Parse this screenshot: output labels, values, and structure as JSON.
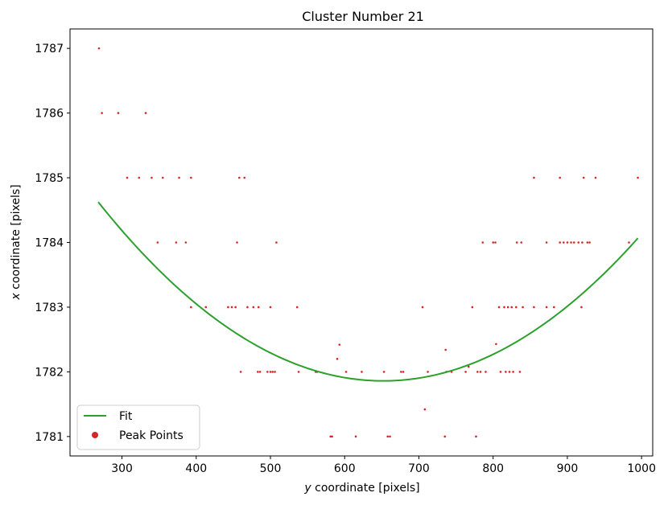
{
  "chart_data": {
    "type": "scatter",
    "title": "Cluster Number 21",
    "xlabel_italic": "y",
    "xlabel_rest": " coordinate [pixels]",
    "ylabel_italic": "x",
    "ylabel_rest": " coordinate [pixels]",
    "xlim": [
      230,
      1015
    ],
    "ylim": [
      1780.7,
      1787.3
    ],
    "xticks": [
      300,
      400,
      500,
      600,
      700,
      800,
      900,
      1000
    ],
    "yticks": [
      1781,
      1782,
      1783,
      1784,
      1785,
      1786,
      1787
    ],
    "grid": false,
    "legend_position": "lower-left",
    "series": [
      {
        "name": "Fit",
        "kind": "line",
        "color": "#2ca02c",
        "x_range": [
          268,
          995
        ],
        "quadratic": {
          "vertex_x": 652,
          "vertex_y": 1781.86,
          "a": 1.875e-05
        }
      },
      {
        "name": "Peak Points",
        "kind": "scatter",
        "color": "#d62728",
        "points": [
          [
            269,
            1787
          ],
          [
            273,
            1786
          ],
          [
            295,
            1786
          ],
          [
            332,
            1786
          ],
          [
            307,
            1785
          ],
          [
            323,
            1785
          ],
          [
            340,
            1785
          ],
          [
            355,
            1785
          ],
          [
            377,
            1785
          ],
          [
            393,
            1785
          ],
          [
            458,
            1785
          ],
          [
            465,
            1785
          ],
          [
            348,
            1784
          ],
          [
            373,
            1784
          ],
          [
            386,
            1784
          ],
          [
            455,
            1784
          ],
          [
            508,
            1784
          ],
          [
            393,
            1783
          ],
          [
            413,
            1783
          ],
          [
            443,
            1783
          ],
          [
            448,
            1783
          ],
          [
            453,
            1783
          ],
          [
            469,
            1783
          ],
          [
            477,
            1783
          ],
          [
            484,
            1783
          ],
          [
            500,
            1783
          ],
          [
            536,
            1783
          ],
          [
            460,
            1782
          ],
          [
            483,
            1782
          ],
          [
            486,
            1782
          ],
          [
            496,
            1782
          ],
          [
            500,
            1782
          ],
          [
            503,
            1782
          ],
          [
            506,
            1782
          ],
          [
            538,
            1782
          ],
          [
            561,
            1782
          ],
          [
            563,
            1782
          ],
          [
            590,
            1782.2
          ],
          [
            593,
            1782.42
          ],
          [
            602,
            1782
          ],
          [
            623,
            1782
          ],
          [
            653,
            1782
          ],
          [
            676,
            1782
          ],
          [
            679,
            1782
          ],
          [
            581,
            1781
          ],
          [
            583,
            1781
          ],
          [
            615,
            1781
          ],
          [
            658,
            1781
          ],
          [
            661,
            1781
          ],
          [
            705,
            1783
          ],
          [
            708,
            1781.42
          ],
          [
            712,
            1782
          ],
          [
            735,
            1781
          ],
          [
            736,
            1782.34
          ],
          [
            737,
            1782
          ],
          [
            744,
            1782
          ],
          [
            763,
            1782
          ],
          [
            767,
            1782.08
          ],
          [
            772,
            1783
          ],
          [
            777,
            1781
          ],
          [
            779,
            1782
          ],
          [
            783,
            1782
          ],
          [
            790,
            1782
          ],
          [
            786,
            1784
          ],
          [
            800,
            1784
          ],
          [
            803,
            1784
          ],
          [
            804,
            1782.43
          ],
          [
            808,
            1783
          ],
          [
            810,
            1782
          ],
          [
            815,
            1783
          ],
          [
            817,
            1782
          ],
          [
            820,
            1783
          ],
          [
            822,
            1782
          ],
          [
            825,
            1783
          ],
          [
            827,
            1782
          ],
          [
            831,
            1783
          ],
          [
            832,
            1784
          ],
          [
            836,
            1782
          ],
          [
            838,
            1784
          ],
          [
            840,
            1783
          ],
          [
            855,
            1785
          ],
          [
            855,
            1783
          ],
          [
            872,
            1784
          ],
          [
            872,
            1783
          ],
          [
            882,
            1783
          ],
          [
            890,
            1785
          ],
          [
            890,
            1784
          ],
          [
            895,
            1784
          ],
          [
            900,
            1784
          ],
          [
            905,
            1784
          ],
          [
            909,
            1784
          ],
          [
            915,
            1784
          ],
          [
            919,
            1783
          ],
          [
            920,
            1784
          ],
          [
            922,
            1785
          ],
          [
            927,
            1784
          ],
          [
            930,
            1784
          ],
          [
            938,
            1785
          ],
          [
            983,
            1784
          ],
          [
            995,
            1785
          ]
        ]
      }
    ]
  }
}
